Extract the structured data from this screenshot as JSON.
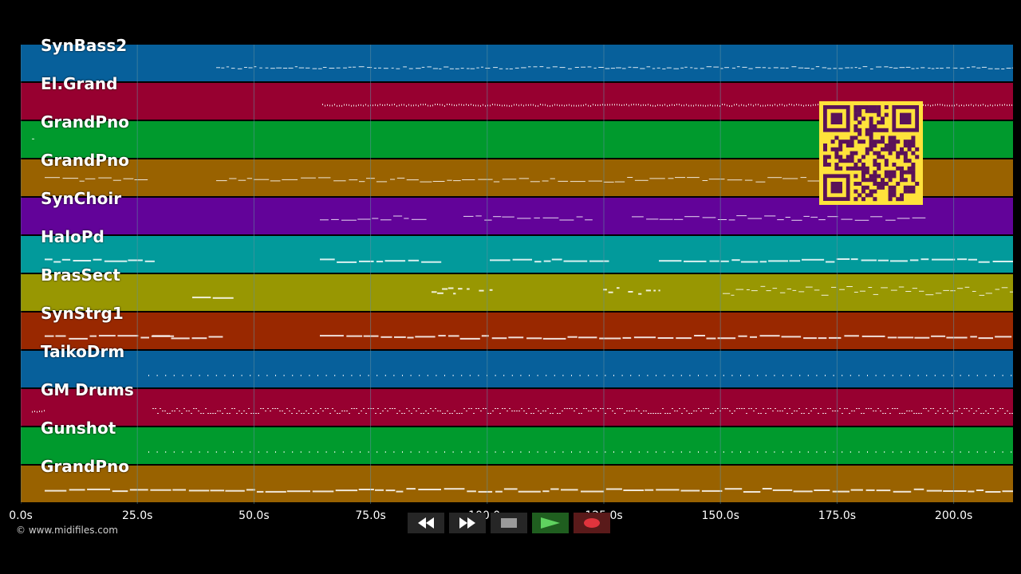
{
  "colors": {
    "track_palette": [
      "#07609b",
      "#970030",
      "#009a2d",
      "#996200",
      "#620399",
      "#029a9b",
      "#989702",
      "#992800"
    ],
    "grid": "#5f8f9f",
    "note": "#ffffff",
    "qr_background": "#ffe23b",
    "qr_foreground": "#5a1259"
  },
  "tracks": [
    {
      "name": "SynBass2",
      "color": "#07609b"
    },
    {
      "name": "El.Grand",
      "color": "#970030"
    },
    {
      "name": "GrandPno",
      "color": "#009a2d"
    },
    {
      "name": "GrandPno",
      "color": "#996200"
    },
    {
      "name": "SynChoir",
      "color": "#620399"
    },
    {
      "name": "HaloPd",
      "color": "#029a9b"
    },
    {
      "name": "BrasSect",
      "color": "#989702"
    },
    {
      "name": "SynStrg1",
      "color": "#992800"
    },
    {
      "name": "TaikoDrm",
      "color": "#07609b"
    },
    {
      "name": "GM Drums",
      "color": "#970030"
    },
    {
      "name": "Gunshot",
      "color": "#009a2d"
    },
    {
      "name": "GrandPno",
      "color": "#996200"
    }
  ],
  "timeline": {
    "ticks": [
      {
        "seconds": 0,
        "label": "0.0s"
      },
      {
        "seconds": 25,
        "label": "25.0s"
      },
      {
        "seconds": 50,
        "label": "50.0s"
      },
      {
        "seconds": 75,
        "label": "75.0s"
      },
      {
        "seconds": 100,
        "label": "100.0s"
      },
      {
        "seconds": 125,
        "label": "125.0s"
      },
      {
        "seconds": 150,
        "label": "150.0s"
      },
      {
        "seconds": 175,
        "label": "175.0s"
      },
      {
        "seconds": 200,
        "label": "200.0s"
      }
    ]
  },
  "footer": {
    "copyright": "© www.midifiles.com"
  },
  "transport": {
    "buttons": [
      {
        "name": "rewind",
        "icon": "rewind-icon"
      },
      {
        "name": "fast-forward",
        "icon": "fast-forward-icon"
      },
      {
        "name": "stop",
        "icon": "stop-icon"
      },
      {
        "name": "play",
        "icon": "play-icon"
      },
      {
        "name": "record",
        "icon": "record-icon"
      }
    ]
  }
}
